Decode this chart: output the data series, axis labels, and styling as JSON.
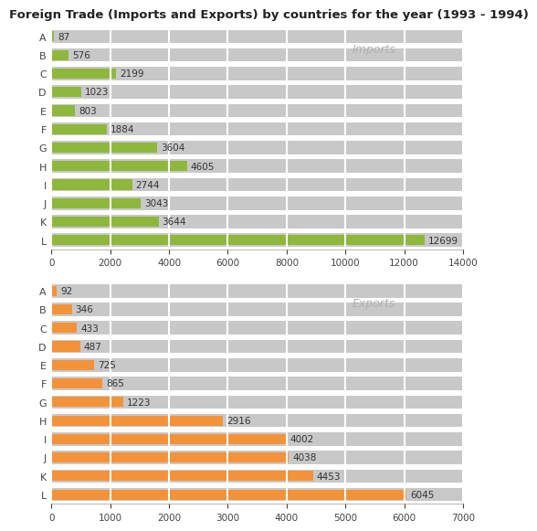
{
  "title": "Foreign Trade (Imports and Exports) by countries for the year (1993 - 1994)",
  "categories": [
    "A",
    "B",
    "C",
    "D",
    "E",
    "F",
    "G",
    "H",
    "I",
    "J",
    "K",
    "L"
  ],
  "imports": [
    87,
    576,
    2199,
    1023,
    803,
    1884,
    3604,
    4605,
    2744,
    3043,
    3644,
    12699
  ],
  "exports": [
    92,
    346,
    433,
    487,
    725,
    865,
    1223,
    2916,
    4002,
    4038,
    4453,
    6045
  ],
  "import_color": "#8DB83B",
  "export_color": "#F4923A",
  "bar_bg_color": "#C8C8C8",
  "imports_label": "Imports",
  "exports_label": "Exports",
  "imports_xlim": [
    0,
    14000
  ],
  "imports_xticks": [
    0,
    2000,
    4000,
    6000,
    8000,
    10000,
    12000,
    14000
  ],
  "exports_xlim": [
    0,
    7000
  ],
  "exports_xticks": [
    0,
    1000,
    2000,
    3000,
    4000,
    5000,
    6000,
    7000
  ],
  "bg_color": "#FFFFFF",
  "grid_color": "#FFFFFF",
  "title_fontsize": 9.5,
  "label_fontsize": 8,
  "tick_fontsize": 7.5,
  "annotation_fontsize": 7.5,
  "watermark_color": "#B0B0B0",
  "watermark_fontsize": 9
}
